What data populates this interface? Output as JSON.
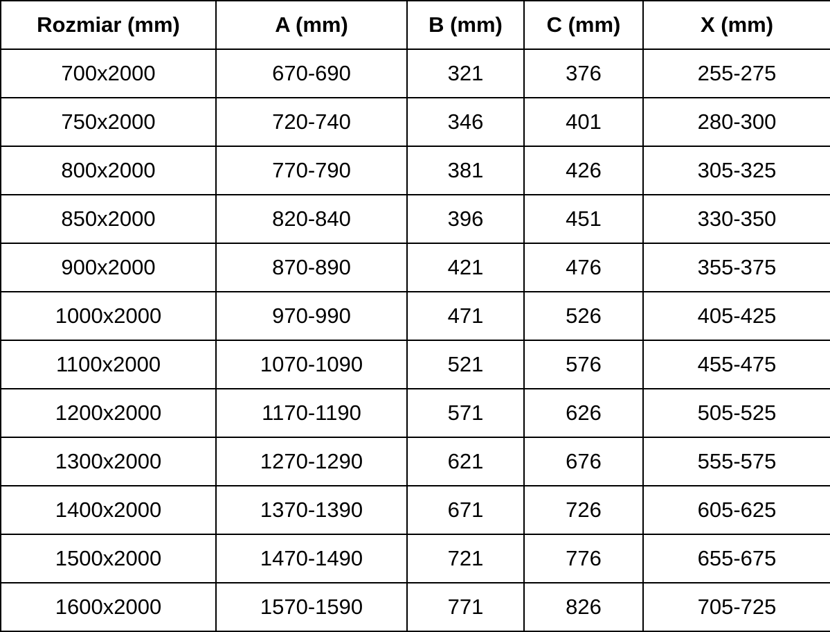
{
  "table": {
    "name": "shower-door-dimensions-table",
    "columns": [
      "Rozmiar (mm)",
      "A (mm)",
      "B (mm)",
      "C (mm)",
      "X (mm)"
    ],
    "rows": [
      [
        "700x2000",
        "670-690",
        "321",
        "376",
        "255-275"
      ],
      [
        "750x2000",
        "720-740",
        "346",
        "401",
        "280-300"
      ],
      [
        "800x2000",
        "770-790",
        "381",
        "426",
        "305-325"
      ],
      [
        "850x2000",
        "820-840",
        "396",
        "451",
        "330-350"
      ],
      [
        "900x2000",
        "870-890",
        "421",
        "476",
        "355-375"
      ],
      [
        "1000x2000",
        "970-990",
        "471",
        "526",
        "405-425"
      ],
      [
        "1100x2000",
        "1070-1090",
        "521",
        "576",
        "455-475"
      ],
      [
        "1200x2000",
        "1170-1190",
        "571",
        "626",
        "505-525"
      ],
      [
        "1300x2000",
        "1270-1290",
        "621",
        "676",
        "555-575"
      ],
      [
        "1400x2000",
        "1370-1390",
        "671",
        "726",
        "605-625"
      ],
      [
        "1500x2000",
        "1470-1490",
        "721",
        "776",
        "655-675"
      ],
      [
        "1600x2000",
        "1570-1590",
        "771",
        "826",
        "705-725"
      ]
    ],
    "colors": {
      "border": "#000000",
      "text": "#000000",
      "background": "#ffffff"
    }
  }
}
